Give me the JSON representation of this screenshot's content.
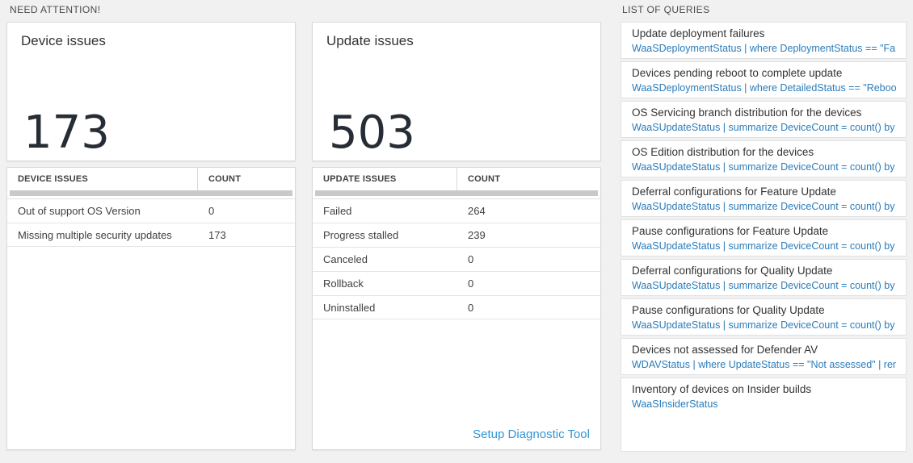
{
  "headers": {
    "need_attention": "NEED ATTENTION!",
    "list_of_queries": "LIST OF QUERIES"
  },
  "colors": {
    "page_bg": "#f1f1f1",
    "card_border": "#d9d9d9",
    "query_link_blue": "#2b7cba",
    "diag_link_blue": "#3296d6",
    "big_number_color": "#272d34"
  },
  "device_card": {
    "title": "Device issues",
    "count": "173",
    "table": {
      "headers": [
        "DEVICE ISSUES",
        "COUNT"
      ],
      "rows": [
        {
          "label": "Out of support OS Version",
          "count": "0"
        },
        {
          "label": "Missing multiple security updates",
          "count": "173"
        }
      ]
    }
  },
  "update_card": {
    "title": "Update issues",
    "count": "503",
    "table": {
      "headers": [
        "UPDATE ISSUES",
        "COUNT"
      ],
      "rows": [
        {
          "label": "Failed",
          "count": "264"
        },
        {
          "label": "Progress stalled",
          "count": "239"
        },
        {
          "label": "Canceled",
          "count": "0"
        },
        {
          "label": "Rollback",
          "count": "0"
        },
        {
          "label": "Uninstalled",
          "count": "0"
        }
      ]
    },
    "link": "Setup Diagnostic Tool"
  },
  "queries": [
    {
      "title": "Update deployment failures",
      "query": "WaaSDeploymentStatus | where DeploymentStatus == \"Failed\" |..."
    },
    {
      "title": "Devices pending reboot to complete update",
      "query": "WaaSDeploymentStatus | where DetailedStatus == \"Reboot pend..."
    },
    {
      "title": "OS Servicing branch distribution for the devices",
      "query": "WaaSUpdateStatus | summarize DeviceCount = count() by OSSer..."
    },
    {
      "title": "OS Edition distribution for the devices",
      "query": "WaaSUpdateStatus | summarize DeviceCount = count() by OSEdit..."
    },
    {
      "title": "Deferral configurations for Feature Update",
      "query": "WaaSUpdateStatus | summarize DeviceCount = count() by Featur..."
    },
    {
      "title": "Pause configurations for Feature Update",
      "query": "WaaSUpdateStatus | summarize DeviceCount = count() by Featur..."
    },
    {
      "title": "Deferral configurations for Quality Update",
      "query": "WaaSUpdateStatus | summarize DeviceCount = count() by Qualit..."
    },
    {
      "title": "Pause configurations for Quality Update",
      "query": "WaaSUpdateStatus | summarize DeviceCount = count() by Qualit..."
    },
    {
      "title": "Devices not assessed for Defender AV",
      "query": "WDAVStatus | where UpdateStatus == \"Not assessed\" | render ta..."
    },
    {
      "title": "Inventory of devices on Insider builds",
      "query": "WaaSInsiderStatus"
    }
  ]
}
